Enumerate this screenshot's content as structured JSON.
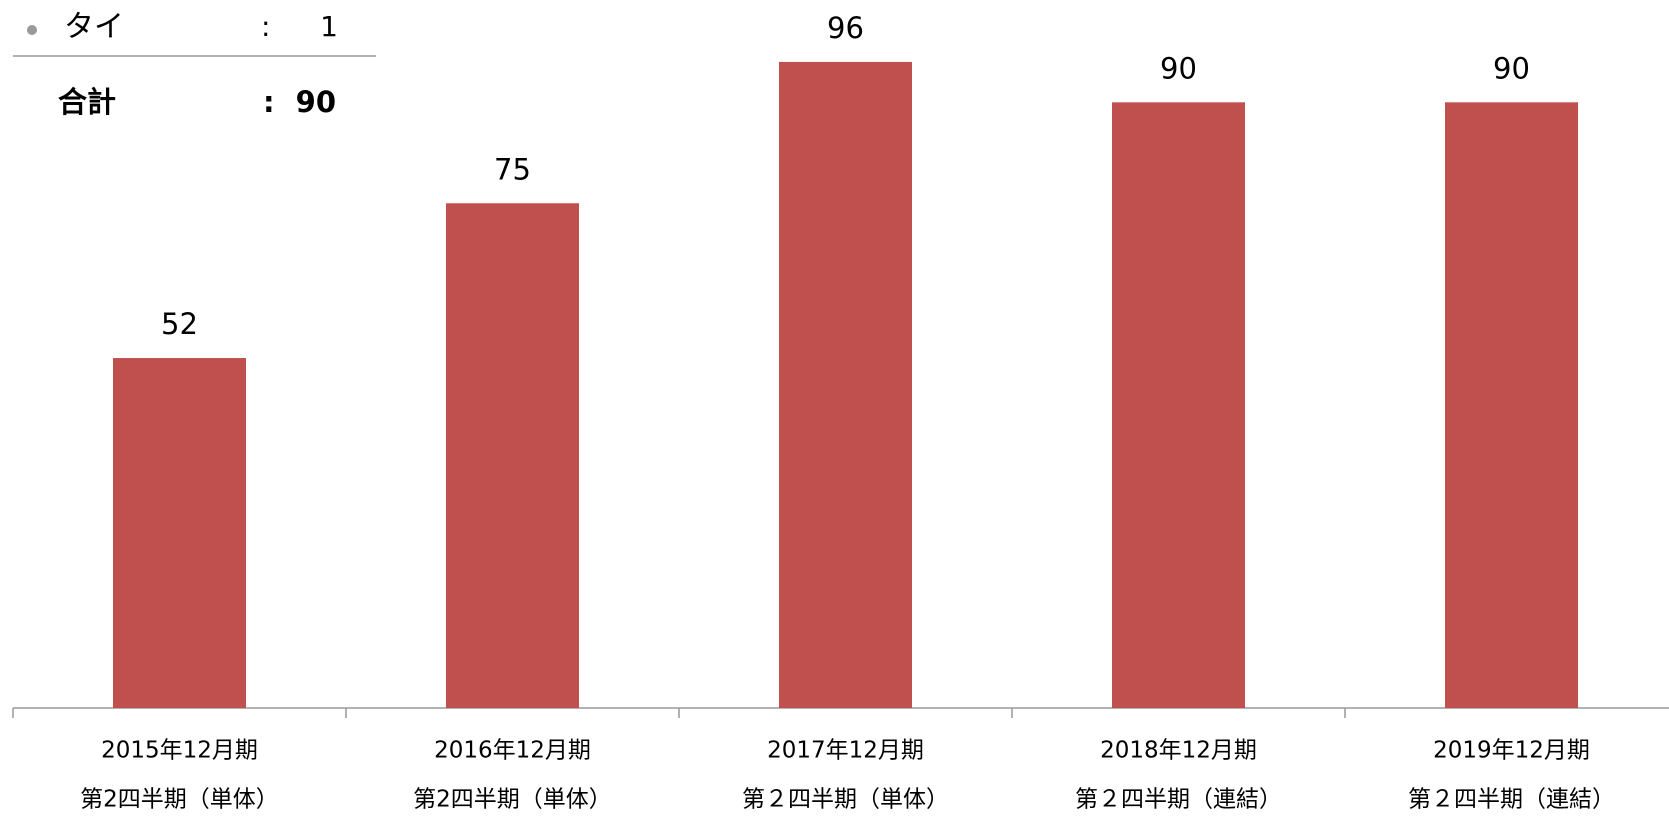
{
  "panel": {
    "rows": [
      {
        "label": "タイ",
        "value": "1"
      }
    ],
    "separator": ":",
    "total": {
      "label": "合計",
      "value": "90"
    }
  },
  "chart_data": {
    "type": "bar",
    "categories": [
      [
        "2015年12月期",
        "第2四半期（単体）"
      ],
      [
        "2016年12月期",
        "第2四半期（単体）"
      ],
      [
        "2017年12月期",
        "第２四半期（単体）"
      ],
      [
        "2018年12月期",
        "第２四半期（連結）"
      ],
      [
        "2019年12月期",
        "第２四半期（連結）"
      ]
    ],
    "values": [
      52,
      75,
      96,
      90,
      90
    ],
    "color": "#c0504d",
    "ylim": [
      0,
      100
    ]
  }
}
